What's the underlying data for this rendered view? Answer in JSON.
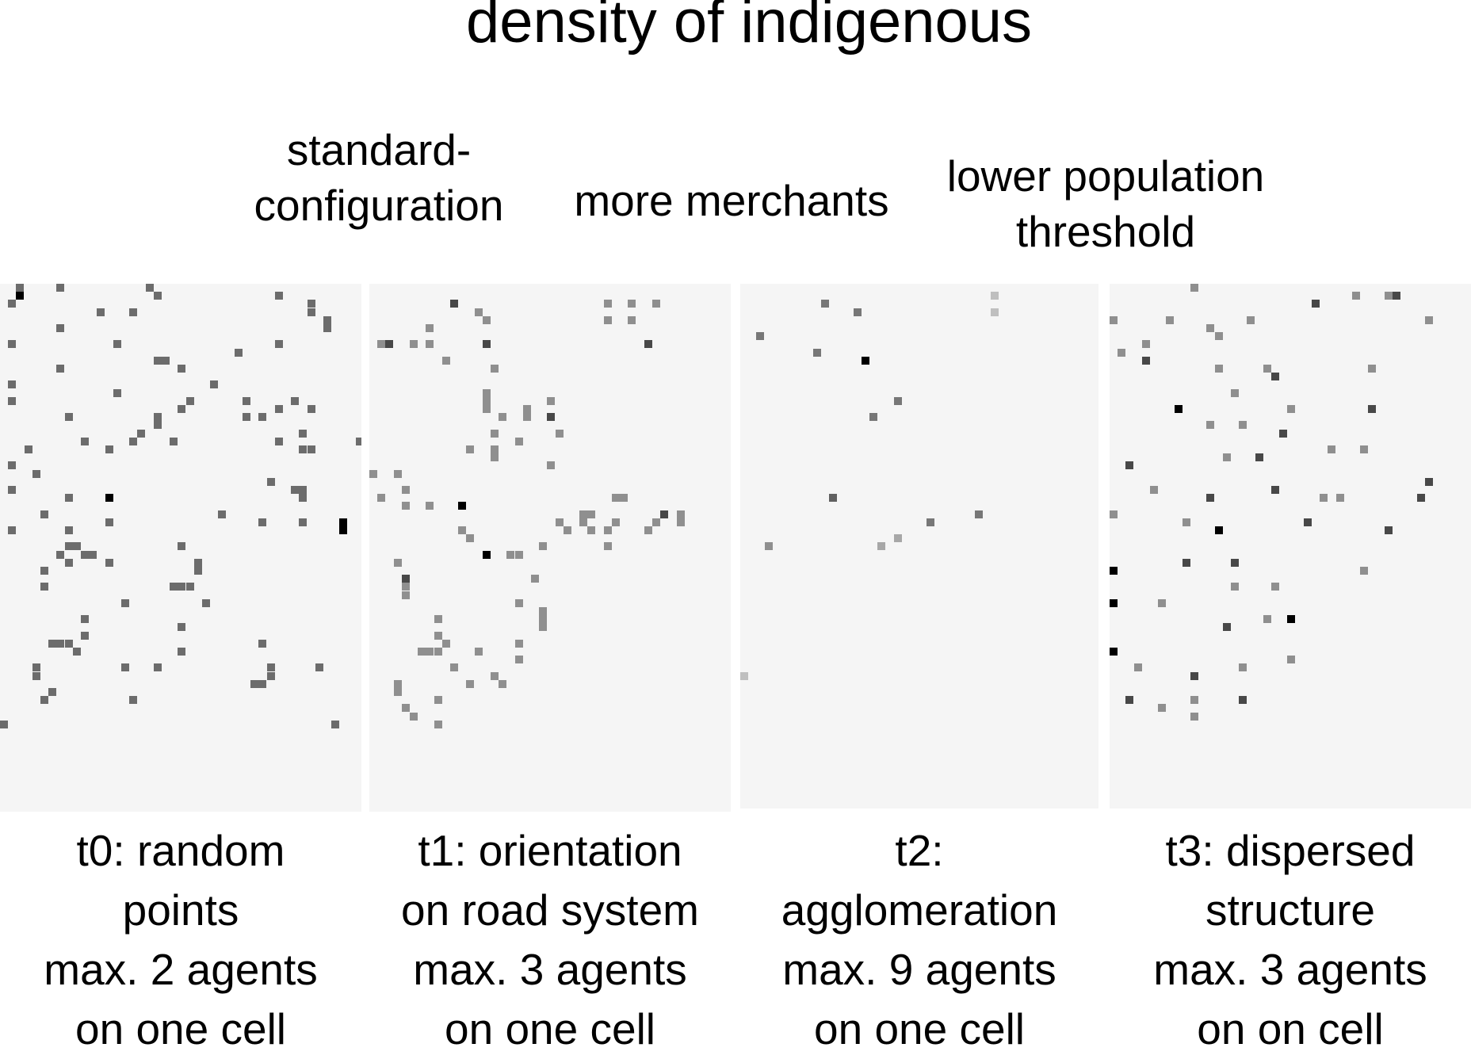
{
  "title": "density of indigenous",
  "headers": [
    {
      "text": "standard-\nconfiguration"
    },
    {
      "text": "more merchants"
    },
    {
      "text": "lower population\nthreshold"
    }
  ],
  "panels": [
    {
      "caption": "t0: random\npoints\nmax. 2 agents\non one cell",
      "max_agents": 2,
      "cells": [
        [
          2,
          0,
          1
        ],
        [
          2,
          1,
          2
        ],
        [
          7,
          0,
          1
        ],
        [
          18,
          0,
          1
        ],
        [
          19,
          1,
          1
        ],
        [
          34,
          1,
          1
        ],
        [
          1,
          2,
          1
        ],
        [
          12,
          3,
          1
        ],
        [
          16,
          3,
          1
        ],
        [
          38,
          2,
          1
        ],
        [
          38,
          3,
          1
        ],
        [
          40,
          4,
          1
        ],
        [
          7,
          5,
          1
        ],
        [
          40,
          5,
          1
        ],
        [
          1,
          7,
          1
        ],
        [
          14,
          7,
          1
        ],
        [
          34,
          7,
          1
        ],
        [
          29,
          8,
          1
        ],
        [
          19,
          9,
          1
        ],
        [
          20,
          9,
          1
        ],
        [
          7,
          10,
          1
        ],
        [
          22,
          10,
          1
        ],
        [
          1,
          12,
          1
        ],
        [
          26,
          12,
          1
        ],
        [
          14,
          13,
          1
        ],
        [
          1,
          14,
          1
        ],
        [
          23,
          14,
          1
        ],
        [
          30,
          14,
          1
        ],
        [
          36,
          14,
          1
        ],
        [
          22,
          15,
          1
        ],
        [
          34,
          15,
          1
        ],
        [
          38,
          15,
          1
        ],
        [
          8,
          16,
          1
        ],
        [
          19,
          16,
          1
        ],
        [
          19,
          17,
          1
        ],
        [
          30,
          16,
          1
        ],
        [
          32,
          16,
          1
        ],
        [
          37,
          18,
          1
        ],
        [
          34,
          19,
          1
        ],
        [
          10,
          19,
          1
        ],
        [
          16,
          19,
          1
        ],
        [
          17,
          18,
          1
        ],
        [
          21,
          19,
          1
        ],
        [
          13,
          20,
          1
        ],
        [
          3,
          20,
          1
        ],
        [
          44,
          19,
          1
        ],
        [
          37,
          20,
          1
        ],
        [
          38,
          20,
          1
        ],
        [
          1,
          22,
          1
        ],
        [
          4,
          23,
          1
        ],
        [
          33,
          24,
          1
        ],
        [
          1,
          25,
          1
        ],
        [
          36,
          25,
          1
        ],
        [
          37,
          25,
          1
        ],
        [
          8,
          26,
          1
        ],
        [
          13,
          26,
          2
        ],
        [
          37,
          26,
          1
        ],
        [
          5,
          28,
          1
        ],
        [
          27,
          28,
          1
        ],
        [
          13,
          29,
          1
        ],
        [
          37,
          29,
          1
        ],
        [
          32,
          29,
          1
        ],
        [
          1,
          30,
          1
        ],
        [
          8,
          30,
          1
        ],
        [
          42,
          29,
          2
        ],
        [
          42,
          30,
          2
        ],
        [
          8,
          32,
          1
        ],
        [
          9,
          32,
          1
        ],
        [
          10,
          33,
          1
        ],
        [
          11,
          33,
          1
        ],
        [
          22,
          32,
          1
        ],
        [
          7,
          33,
          1
        ],
        [
          8,
          34,
          1
        ],
        [
          13,
          34,
          1
        ],
        [
          24,
          34,
          1
        ],
        [
          5,
          35,
          1
        ],
        [
          24,
          35,
          1
        ],
        [
          5,
          37,
          1
        ],
        [
          21,
          37,
          1
        ],
        [
          22,
          37,
          1
        ],
        [
          23,
          37,
          1
        ],
        [
          15,
          39,
          1
        ],
        [
          25,
          39,
          1
        ],
        [
          10,
          41,
          1
        ],
        [
          22,
          42,
          1
        ],
        [
          10,
          43,
          1
        ],
        [
          6,
          44,
          1
        ],
        [
          7,
          44,
          1
        ],
        [
          8,
          44,
          1
        ],
        [
          9,
          45,
          1
        ],
        [
          32,
          44,
          1
        ],
        [
          22,
          45,
          1
        ],
        [
          4,
          47,
          1
        ],
        [
          15,
          47,
          1
        ],
        [
          19,
          47,
          1
        ],
        [
          33,
          47,
          1
        ],
        [
          39,
          47,
          1
        ],
        [
          4,
          48,
          1
        ],
        [
          33,
          48,
          1
        ],
        [
          32,
          49,
          1
        ],
        [
          31,
          49,
          1
        ],
        [
          6,
          50,
          1
        ],
        [
          5,
          51,
          1
        ],
        [
          16,
          51,
          1
        ],
        [
          0,
          54,
          1
        ],
        [
          41,
          54,
          1
        ]
      ]
    },
    {
      "caption": "t1: orientation\non road system\nmax. 3 agents\non one cell",
      "max_agents": 3,
      "cells": [
        [
          10,
          2,
          2
        ],
        [
          29,
          2,
          1
        ],
        [
          32,
          2,
          1
        ],
        [
          35,
          2,
          1
        ],
        [
          13,
          3,
          1
        ],
        [
          14,
          4,
          1
        ],
        [
          32,
          4,
          1
        ],
        [
          29,
          4,
          1
        ],
        [
          7,
          5,
          1
        ],
        [
          1,
          7,
          1
        ],
        [
          2,
          7,
          2
        ],
        [
          5,
          7,
          1
        ],
        [
          7,
          7,
          1
        ],
        [
          14,
          7,
          2
        ],
        [
          34,
          7,
          2
        ],
        [
          9,
          9,
          1
        ],
        [
          15,
          10,
          1
        ],
        [
          14,
          13,
          1
        ],
        [
          14,
          14,
          1
        ],
        [
          14,
          15,
          1
        ],
        [
          22,
          14,
          1
        ],
        [
          19,
          15,
          1
        ],
        [
          19,
          16,
          1
        ],
        [
          22,
          16,
          2
        ],
        [
          16,
          16,
          1
        ],
        [
          23,
          18,
          1
        ],
        [
          15,
          18,
          1
        ],
        [
          18,
          19,
          1
        ],
        [
          15,
          20,
          1
        ],
        [
          12,
          20,
          1
        ],
        [
          15,
          21,
          1
        ],
        [
          22,
          22,
          1
        ],
        [
          0,
          23,
          1
        ],
        [
          3,
          23,
          1
        ],
        [
          4,
          25,
          1
        ],
        [
          1,
          26,
          1
        ],
        [
          11,
          27,
          3
        ],
        [
          30,
          26,
          1
        ],
        [
          31,
          26,
          1
        ],
        [
          4,
          27,
          1
        ],
        [
          7,
          27,
          1
        ],
        [
          26,
          28,
          1
        ],
        [
          27,
          28,
          1
        ],
        [
          36,
          28,
          2
        ],
        [
          38,
          28,
          1
        ],
        [
          35,
          29,
          1
        ],
        [
          23,
          29,
          1
        ],
        [
          26,
          29,
          1
        ],
        [
          30,
          29,
          1
        ],
        [
          38,
          29,
          1
        ],
        [
          34,
          30,
          1
        ],
        [
          11,
          30,
          1
        ],
        [
          24,
          30,
          1
        ],
        [
          27,
          30,
          1
        ],
        [
          29,
          30,
          1
        ],
        [
          12,
          31,
          1
        ],
        [
          21,
          32,
          1
        ],
        [
          14,
          33,
          3
        ],
        [
          18,
          33,
          1
        ],
        [
          29,
          32,
          1
        ],
        [
          3,
          34,
          1
        ],
        [
          17,
          33,
          1
        ],
        [
          4,
          36,
          2
        ],
        [
          4,
          37,
          1
        ],
        [
          20,
          36,
          1
        ],
        [
          4,
          38,
          1
        ],
        [
          18,
          39,
          1
        ],
        [
          21,
          40,
          1
        ],
        [
          21,
          41,
          1
        ],
        [
          8,
          41,
          1
        ],
        [
          21,
          42,
          1
        ],
        [
          8,
          43,
          1
        ],
        [
          18,
          44,
          1
        ],
        [
          6,
          45,
          1
        ],
        [
          7,
          45,
          1
        ],
        [
          8,
          45,
          1
        ],
        [
          9,
          44,
          1
        ],
        [
          13,
          45,
          1
        ],
        [
          18,
          46,
          1
        ],
        [
          10,
          47,
          1
        ],
        [
          15,
          48,
          1
        ],
        [
          3,
          49,
          1
        ],
        [
          3,
          50,
          1
        ],
        [
          12,
          49,
          1
        ],
        [
          16,
          49,
          1
        ],
        [
          8,
          51,
          1
        ],
        [
          4,
          52,
          1
        ],
        [
          5,
          53,
          1
        ],
        [
          8,
          54,
          1
        ]
      ]
    },
    {
      "caption": "t2:\nagglomeration\nmax. 9 agents\non one cell",
      "max_agents": 9,
      "cells": [
        [
          31,
          1,
          1
        ],
        [
          10,
          2,
          4
        ],
        [
          31,
          3,
          1
        ],
        [
          14,
          3,
          4
        ],
        [
          2,
          6,
          4
        ],
        [
          9,
          8,
          4
        ],
        [
          15,
          9,
          9
        ],
        [
          19,
          14,
          4
        ],
        [
          16,
          16,
          4
        ],
        [
          11,
          26,
          5
        ],
        [
          29,
          28,
          4
        ],
        [
          23,
          29,
          4
        ],
        [
          3,
          32,
          3
        ],
        [
          17,
          32,
          2
        ],
        [
          19,
          31,
          2
        ],
        [
          0,
          48,
          1
        ]
      ]
    },
    {
      "caption": "t3: dispersed\nstructure\nmax. 3 agents\non on cell",
      "max_agents": 3,
      "cells": [
        [
          10,
          0,
          1
        ],
        [
          34,
          1,
          1
        ],
        [
          30,
          1,
          1
        ],
        [
          25,
          2,
          2
        ],
        [
          35,
          1,
          2
        ],
        [
          0,
          4,
          1
        ],
        [
          7,
          4,
          1
        ],
        [
          12,
          5,
          1
        ],
        [
          17,
          4,
          1
        ],
        [
          39,
          4,
          1
        ],
        [
          4,
          7,
          1
        ],
        [
          13,
          6,
          1
        ],
        [
          1,
          8,
          1
        ],
        [
          4,
          9,
          2
        ],
        [
          13,
          10,
          1
        ],
        [
          19,
          10,
          1
        ],
        [
          32,
          10,
          1
        ],
        [
          20,
          11,
          2
        ],
        [
          15,
          13,
          1
        ],
        [
          8,
          15,
          3
        ],
        [
          22,
          15,
          1
        ],
        [
          32,
          15,
          2
        ],
        [
          12,
          17,
          1
        ],
        [
          16,
          17,
          1
        ],
        [
          21,
          18,
          2
        ],
        [
          27,
          20,
          1
        ],
        [
          31,
          20,
          1
        ],
        [
          14,
          21,
          1
        ],
        [
          18,
          21,
          2
        ],
        [
          2,
          22,
          2
        ],
        [
          39,
          24,
          2
        ],
        [
          5,
          25,
          1
        ],
        [
          20,
          25,
          2
        ],
        [
          12,
          26,
          2
        ],
        [
          26,
          26,
          1
        ],
        [
          28,
          26,
          1
        ],
        [
          38,
          26,
          2
        ],
        [
          0,
          28,
          1
        ],
        [
          9,
          29,
          1
        ],
        [
          24,
          29,
          2
        ],
        [
          13,
          30,
          3
        ],
        [
          34,
          30,
          2
        ],
        [
          9,
          34,
          2
        ],
        [
          15,
          34,
          2
        ],
        [
          31,
          35,
          1
        ],
        [
          0,
          35,
          3
        ],
        [
          15,
          37,
          1
        ],
        [
          20,
          37,
          1
        ],
        [
          6,
          39,
          1
        ],
        [
          0,
          39,
          3
        ],
        [
          19,
          41,
          1
        ],
        [
          22,
          41,
          3
        ],
        [
          14,
          42,
          2
        ],
        [
          0,
          45,
          3
        ],
        [
          22,
          46,
          1
        ],
        [
          3,
          47,
          1
        ],
        [
          16,
          47,
          1
        ],
        [
          10,
          48,
          2
        ],
        [
          2,
          51,
          2
        ],
        [
          6,
          52,
          1
        ],
        [
          10,
          51,
          1
        ],
        [
          16,
          51,
          2
        ],
        [
          10,
          53,
          1
        ]
      ]
    }
  ]
}
